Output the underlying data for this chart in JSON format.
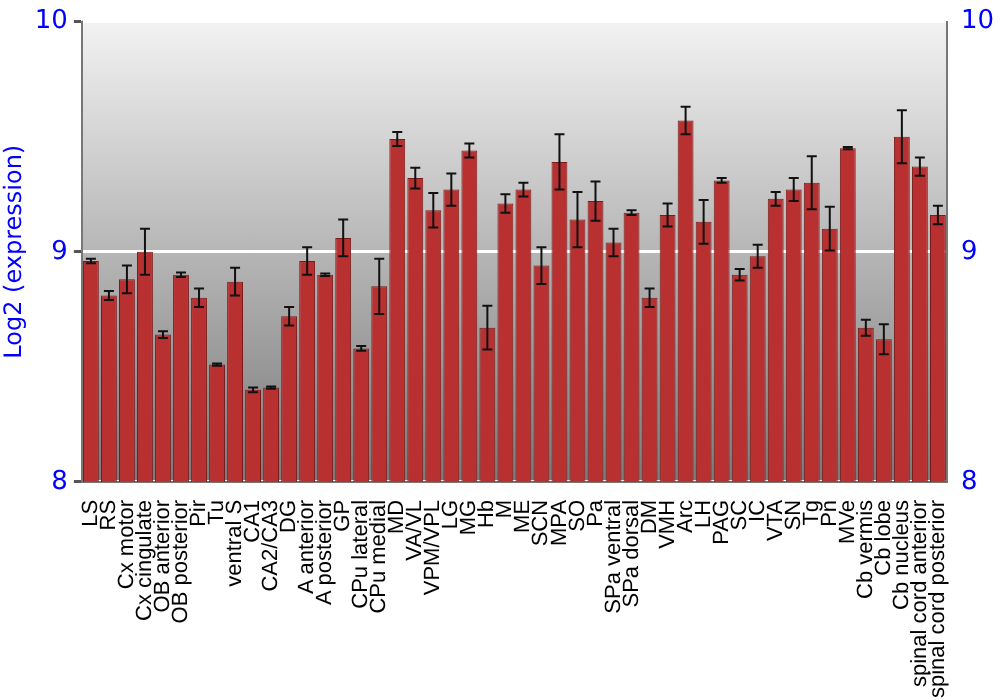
{
  "chart_data": {
    "type": "bar",
    "ylabel": "Log2 (expression)",
    "categories": [
      "LS",
      "RS",
      "Cx motor",
      "Cx cingulate",
      "OB anterior",
      "OB posterior",
      "Pir",
      "Tu",
      "ventral S",
      "CA1",
      "CA2/CA3",
      "DG",
      "A anterior",
      "A posterior",
      "GP",
      "CPu lateral",
      "CPu medial",
      "MD",
      "VA/VL",
      "VPM/VPL",
      "LG",
      "MG",
      "Hb",
      "M",
      "ME",
      "SCN",
      "MPA",
      "SO",
      "Pa",
      "SPa ventral",
      "SPa dorsal",
      "DM",
      "VMH",
      "Arc",
      "LH",
      "PAG",
      "SC",
      "IC",
      "VTA",
      "SN",
      "Tg",
      "Pn",
      "MVe",
      "Cb vermis",
      "Cb lobe",
      "Cb nucleus",
      "spinal cord anterior",
      "spinal cord posterior"
    ],
    "values": [
      8.96,
      8.81,
      8.88,
      9.0,
      8.64,
      8.9,
      8.8,
      8.51,
      8.87,
      8.4,
      8.41,
      8.72,
      8.96,
      8.9,
      9.06,
      8.58,
      8.85,
      9.49,
      9.32,
      9.18,
      9.27,
      9.44,
      8.67,
      9.21,
      9.27,
      8.94,
      9.39,
      9.14,
      9.22,
      9.04,
      9.17,
      8.8,
      9.16,
      9.57,
      9.13,
      9.31,
      8.9,
      8.98,
      9.23,
      9.27,
      9.3,
      9.1,
      9.45,
      8.67,
      8.62,
      9.5,
      9.37,
      9.16
    ],
    "errors": [
      0.01,
      0.02,
      0.06,
      0.1,
      0.015,
      0.01,
      0.04,
      0.005,
      0.06,
      0.01,
      0.005,
      0.04,
      0.06,
      0.005,
      0.08,
      0.01,
      0.12,
      0.03,
      0.045,
      0.075,
      0.07,
      0.03,
      0.095,
      0.04,
      0.03,
      0.08,
      0.12,
      0.12,
      0.085,
      0.06,
      0.01,
      0.04,
      0.05,
      0.06,
      0.095,
      0.01,
      0.025,
      0.05,
      0.03,
      0.05,
      0.115,
      0.095,
      0.005,
      0.035,
      0.065,
      0.115,
      0.04,
      0.04
    ],
    "color": "#b83030",
    "ylim": [
      8,
      10
    ],
    "yticks": [
      8,
      9,
      10
    ],
    "y2lim": [
      8,
      10
    ],
    "y2ticks": [
      8,
      9,
      10
    ],
    "grid": "y"
  }
}
